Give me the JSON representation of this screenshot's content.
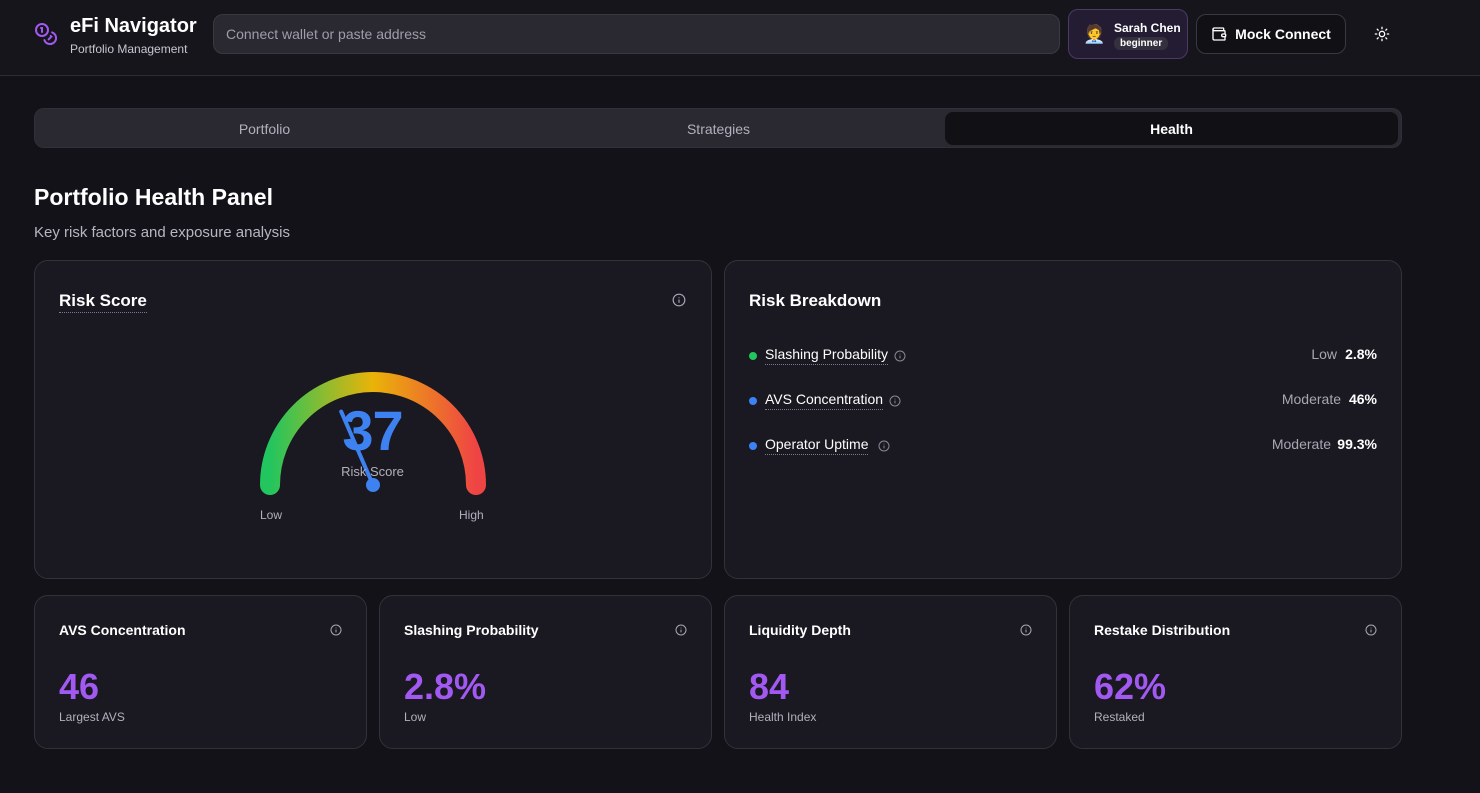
{
  "app": {
    "title": "eFi Navigator",
    "subtitle": "Portfolio Management",
    "logo_icon": "coins-icon"
  },
  "search": {
    "placeholder": "Connect wallet or paste address"
  },
  "user": {
    "name": "Sarah Chen",
    "level": "beginner",
    "avatar": "🧑‍💼"
  },
  "connect": {
    "label": "Mock Connect",
    "icon": "wallet-icon"
  },
  "theme_toggle": {
    "icon": "sun-icon"
  },
  "tabs": [
    {
      "label": "Portfolio",
      "active": false
    },
    {
      "label": "Strategies",
      "active": false
    },
    {
      "label": "Health",
      "active": true
    }
  ],
  "page": {
    "title": "Portfolio Health Panel",
    "subtitle": "Key risk factors and exposure analysis"
  },
  "risk_score": {
    "title": "Risk Score",
    "value": "37",
    "label": "Risk Score",
    "low_label": "Low",
    "high_label": "High",
    "score_fraction": 0.37,
    "colors": {
      "low": "#22c55e",
      "mid": "#eab308",
      "high": "#ef4444",
      "needle": "#3d82f0"
    }
  },
  "risk_breakdown": {
    "title": "Risk Breakdown",
    "items": [
      {
        "label": "Slashing Probability",
        "level": "Low",
        "value": "2.8%",
        "color": "#22c55e"
      },
      {
        "label": "AVS Concentration",
        "level": "Moderate",
        "value": "46%",
        "color": "#3b82f6"
      },
      {
        "label": "Operator Uptime",
        "level": "Moderate",
        "value": "99.3%",
        "color": "#3b82f6"
      }
    ]
  },
  "metrics": [
    {
      "title": "AVS Concentration",
      "value": "46",
      "sub": "Largest AVS"
    },
    {
      "title": "Slashing Probability",
      "value": "2.8%",
      "sub": "Low"
    },
    {
      "title": "Liquidity Depth",
      "value": "84",
      "sub": "Health Index"
    },
    {
      "title": "Restake Distribution",
      "value": "62%",
      "sub": "Restaked"
    }
  ],
  "accent_color": "#a259f2"
}
